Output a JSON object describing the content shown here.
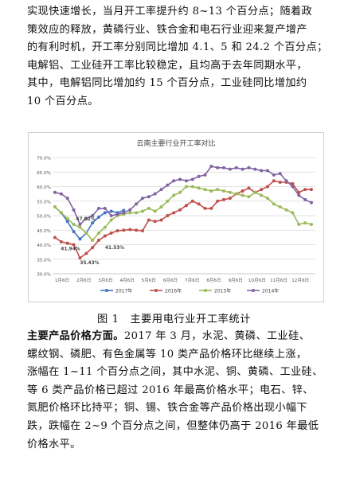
{
  "paragraph1": [
    "实现快速增长，当月开工率提升约 8~13 个百分点；随着政",
    "策效应的释放，黄磷行业、铁合金和电石行业迎来复产增产",
    "的有利时机，开工率分别同比增加 4.1、5 和 24.2 个百分点；",
    "电解铝、工业硅开工率比较稳定，且均高于去年同期水平，",
    "其中，电解铝同比增加约 15 个百分点，工业硅同比增加约",
    "10 个百分点。"
  ],
  "caption": "图 1　主要用电行业开工率统计",
  "paragraph2": {
    "lead": "主要产品价格方面。",
    "lines": [
      "2017 年 3 月，水泥、黄磷、工业硅、",
      "螺纹钢、磷肥、有色金属等 10 类产品价格环比继续上涨，",
      "涨幅在 1~11 个百分点之间，其中水泥、铜、黄磷、工业硅、",
      "等 6 类产品价格已超过 2016 年最高价格水平；电石、锌、",
      "氮肥价格环比持平；铜、锡、铁合金等产品价格出现小幅下",
      "跌，跌幅在 2~9 个百分点之间，但整体仍高于 2016 年最低",
      "价格水平。"
    ]
  },
  "chart_data": {
    "type": "line",
    "title": "云南主要行业开工率对比",
    "ylim": [
      30,
      70
    ],
    "yticks": [
      "30.0%",
      "35.0%",
      "40.0%",
      "45.0%",
      "50.0%",
      "55.0%",
      "60.0%",
      "65.0%",
      "70.0%"
    ],
    "ytick_values": [
      30,
      35,
      40,
      45,
      50,
      55,
      60,
      65,
      70
    ],
    "xticks": [
      "1月6日",
      "2月6日",
      "3月6日",
      "4月6日",
      "5月6日",
      "6月6日",
      "7月6日",
      "8月6日",
      "9月6日",
      "10月6日",
      "11月6日",
      "12月6日"
    ],
    "grid": true,
    "legend": "bottom",
    "series": [
      {
        "name": "2017年",
        "color": "#4472c4",
        "values": [
          53,
          51,
          48,
          44.5,
          41.94,
          44,
          47.5,
          49.5,
          51,
          51.5,
          51,
          51.8
        ]
      },
      {
        "name": "2016年",
        "color": "#c0504d",
        "values": [
          42.5,
          41,
          40.5,
          40,
          35.43,
          37,
          39,
          41.53,
          43,
          44,
          44.8,
          45,
          45.2,
          45,
          44.8,
          48.5,
          48,
          48.5,
          50,
          51,
          52,
          53.5,
          55,
          54,
          52.5,
          52.5,
          55,
          55.5,
          56,
          57.5,
          58.5,
          59.5,
          58,
          59,
          60,
          62,
          61.5,
          61.5,
          61,
          58,
          59,
          59
        ]
      },
      {
        "name": "2015年",
        "color": "#9bbb59",
        "values": [
          53,
          51,
          49,
          47,
          46,
          44,
          41.5,
          44,
          46,
          48.5,
          50,
          50.5,
          51,
          51,
          51.5,
          52.5,
          51.5,
          53,
          55,
          57,
          58,
          60,
          60,
          59.5,
          59,
          58.5,
          59,
          58.5,
          58,
          57.5,
          57,
          56.5,
          58,
          57,
          56,
          54,
          53,
          52,
          51,
          47,
          47.5,
          47
        ]
      },
      {
        "name": "2014年",
        "color": "#8064a2",
        "values": [
          58,
          57.5,
          56,
          52,
          47.02,
          49,
          50,
          52.5,
          52.5,
          50,
          50.5,
          51,
          52,
          54,
          56,
          56.5,
          57.5,
          59,
          60.5,
          62,
          62.5,
          62,
          62.5,
          63.5,
          64,
          67,
          66.5,
          66.5,
          66,
          66.5,
          66,
          66.5,
          66,
          65.5,
          65.5,
          64,
          64.5,
          62,
          60,
          57,
          55.5,
          54.5
        ]
      }
    ],
    "annotations": [
      "47.02%",
      "41.94%",
      "35.43%",
      "41.53%"
    ]
  }
}
